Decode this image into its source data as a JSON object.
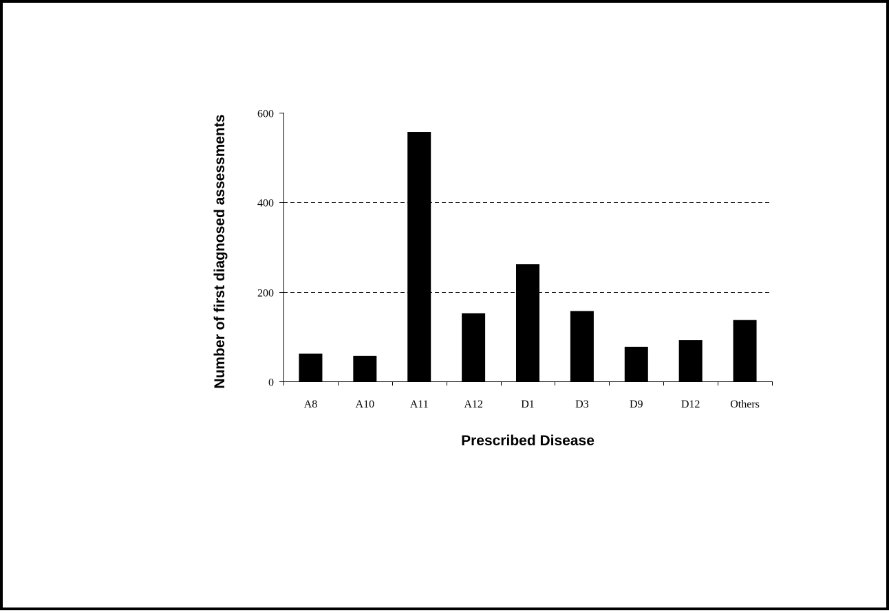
{
  "chart_data": {
    "type": "bar",
    "title": "",
    "xlabel": "Prescribed Disease",
    "ylabel": "Number of first diagnosed assessments",
    "categories": [
      "A8",
      "A10",
      "A11",
      "A12",
      "D1",
      "D3",
      "D9",
      "D12",
      "Others"
    ],
    "values": [
      62,
      57,
      557,
      152,
      262,
      157,
      77,
      92,
      137
    ],
    "ylim": [
      0,
      600
    ],
    "yticks": [
      0,
      200,
      400,
      600
    ],
    "grid": "horizontal dashed",
    "legend": "none",
    "bar_color": "#000000"
  }
}
